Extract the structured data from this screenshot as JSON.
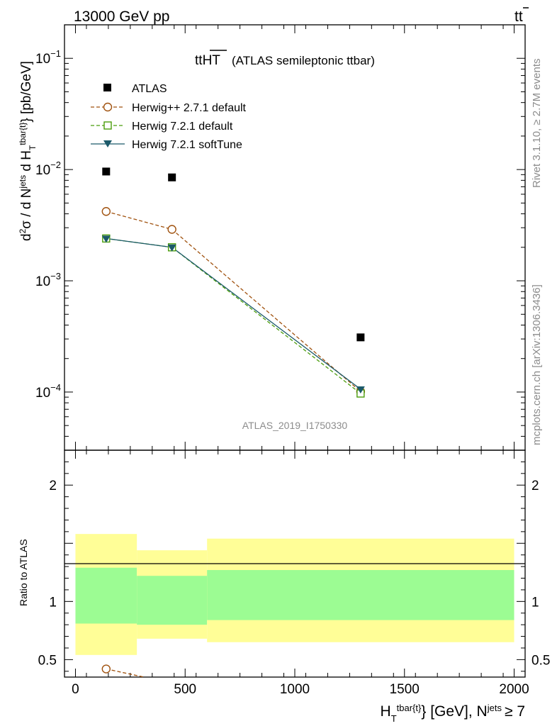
{
  "header": {
    "left": "13000 GeV pp",
    "right_main": "tt",
    "right_bar": "̄"
  },
  "side_text": {
    "rivet": "Rivet 3.1.10, ≥ 2.7M events",
    "source": "mcplots.cern.ch [arXiv:1306.3436]"
  },
  "chart_data": {
    "type": "scatter",
    "title_main": "tt",
    "title_over": "HT",
    "title_rest": "(ATLAS semileptonic ttbar)",
    "watermark": "ATLAS_2019_I1750330",
    "ylabel_main": {
      "p1": "d",
      "sup1": "2",
      "p2": "σ  /  d N",
      "sup2": "jets",
      "p3": " d H",
      "sub3": "T",
      "sup3": "tbar{t}",
      "p4": "} [pb/GeV]"
    },
    "ylabel_ratio": "Ratio to ATLAS",
    "xlabel": {
      "p1": "H",
      "sub1": "T",
      "sup1": "tbar{t}",
      "p2": "} [GeV], N",
      "sup2": "jets",
      "p3": "≥ 7"
    },
    "x_ticks": [
      "0",
      "500",
      "1000",
      "1500",
      "2000"
    ],
    "x_tick_values": [
      0,
      500,
      1000,
      1500,
      2000
    ],
    "xlim": [
      -50,
      2050
    ],
    "ylim_main": [
      3e-05,
      0.2
    ],
    "ylim_ratio": [
      0.35,
      2.3
    ],
    "y_ticks_main": [
      {
        "value": 0.1,
        "base": "10",
        "exp": "−1"
      },
      {
        "value": 0.01,
        "base": "10",
        "exp": "−2"
      },
      {
        "value": 0.001,
        "base": "10",
        "exp": "−3"
      },
      {
        "value": 0.0001,
        "base": "10",
        "exp": "−4"
      }
    ],
    "y_ticks_ratio": [
      {
        "value": 2,
        "label": "2"
      },
      {
        "value": 1,
        "label": "1"
      },
      {
        "value": 0.5,
        "label": "0.5"
      }
    ],
    "bins": [
      {
        "lo": 0,
        "hi": 280,
        "x": 140
      },
      {
        "lo": 280,
        "hi": 600,
        "x": 440
      },
      {
        "lo": 600,
        "hi": 2000,
        "x": 1300
      }
    ],
    "data_series": {
      "name": "ATLAS",
      "values": [
        0.0096,
        0.0085,
        0.00031
      ]
    },
    "series": [
      {
        "name": "Herwig++ 2.7.1 default",
        "color": "#a0520f",
        "marker": "circle-open",
        "dash": "5,3",
        "values": [
          0.0042,
          0.0029,
          0.000101
        ]
      },
      {
        "name": "Herwig 7.2.1 default",
        "color": "#4b9d0c",
        "marker": "square-open",
        "dash": "5,3",
        "values": [
          0.0024,
          0.002,
          9.7e-05
        ]
      },
      {
        "name": "Herwig 7.2.1 softTune",
        "color": "#1c5a6a",
        "marker": "triangle-down-filled",
        "dash": "",
        "values": [
          0.0024,
          0.002,
          0.000106
        ]
      }
    ],
    "ratio_band_inner": [
      [
        0.81,
        1.29
      ],
      [
        0.8,
        1.22
      ],
      [
        0.84,
        1.27
      ]
    ],
    "ratio_band_outer": [
      [
        0.54,
        1.58
      ],
      [
        0.68,
        1.44
      ],
      [
        0.65,
        1.54
      ]
    ],
    "ratio_visible_points": [
      {
        "series": "Herwig++ 2.7.1 default",
        "x": 140,
        "y": 0.42
      }
    ],
    "colors": {
      "inner_band": "#9cfc93",
      "outer_band": "#fffe97",
      "data_marker": "#000000"
    }
  }
}
